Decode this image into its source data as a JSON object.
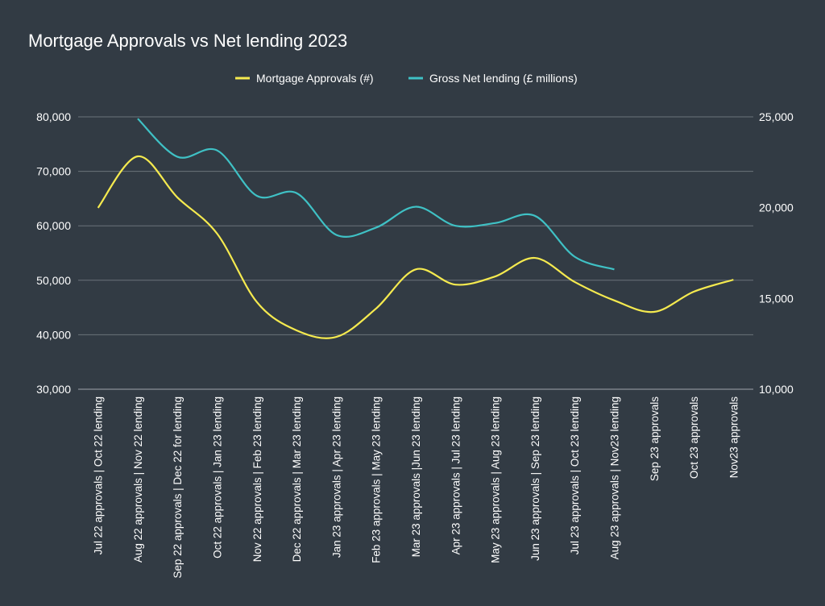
{
  "chart_data": {
    "type": "line",
    "title": "Mortgage Approvals vs Net lending 2023",
    "legend_position": "top",
    "grid": true,
    "categories": [
      "Jul 22 approvals | Oct 22 lending",
      "Aug 22 approvals | Nov 22 lending",
      "Sep 22 approvals | Dec 22 for lending",
      "Oct 22 approvals | Jan 23 lending",
      "Nov 22 approvals | Feb 23 lending",
      "Dec 22 approvals | Mar 23 lending",
      "Jan 23 approvals | Apr 23 lending",
      "Feb 23 approvals | May 23 lending",
      "Mar 23 approvals |Jun 23 lending",
      "Apr 23 approvals | Jul 23 lending",
      "May 23 approvals | Aug 23 lending",
      "Jun 23 approvals | Sep 23 lending",
      "Jul 23 approvals | Oct 23 lending",
      "Aug 23 approvals | Nov23 lending",
      "Sep 23 approvals",
      "Oct 23 approvals",
      "Nov23 approvals"
    ],
    "left_axis": {
      "ylim": [
        30000,
        80000
      ],
      "ticks": [
        "30,000",
        "40,000",
        "50,000",
        "60,000",
        "70,000",
        "80,000"
      ]
    },
    "right_axis": {
      "ylim": [
        10000,
        25000
      ],
      "ticks": [
        "10,000",
        "15,000",
        "20,000",
        "25,000"
      ]
    },
    "series": [
      {
        "name": "Mortgage Approvals (#)",
        "axis": "left",
        "color": "#f5ea4f",
        "values": [
          63300,
          72750,
          65200,
          58550,
          46000,
          40800,
          39600,
          44800,
          52000,
          49200,
          50700,
          54100,
          49700,
          46300,
          44200,
          47900,
          50100
        ]
      },
      {
        "name": "Gross Net lending (£ millions)",
        "axis": "right",
        "color": "#3fc1c5",
        "values": [
          null,
          24900,
          22800,
          23150,
          20650,
          20800,
          18500,
          18900,
          20050,
          19000,
          19150,
          19550,
          17300,
          16600,
          null,
          null,
          null
        ]
      }
    ]
  }
}
